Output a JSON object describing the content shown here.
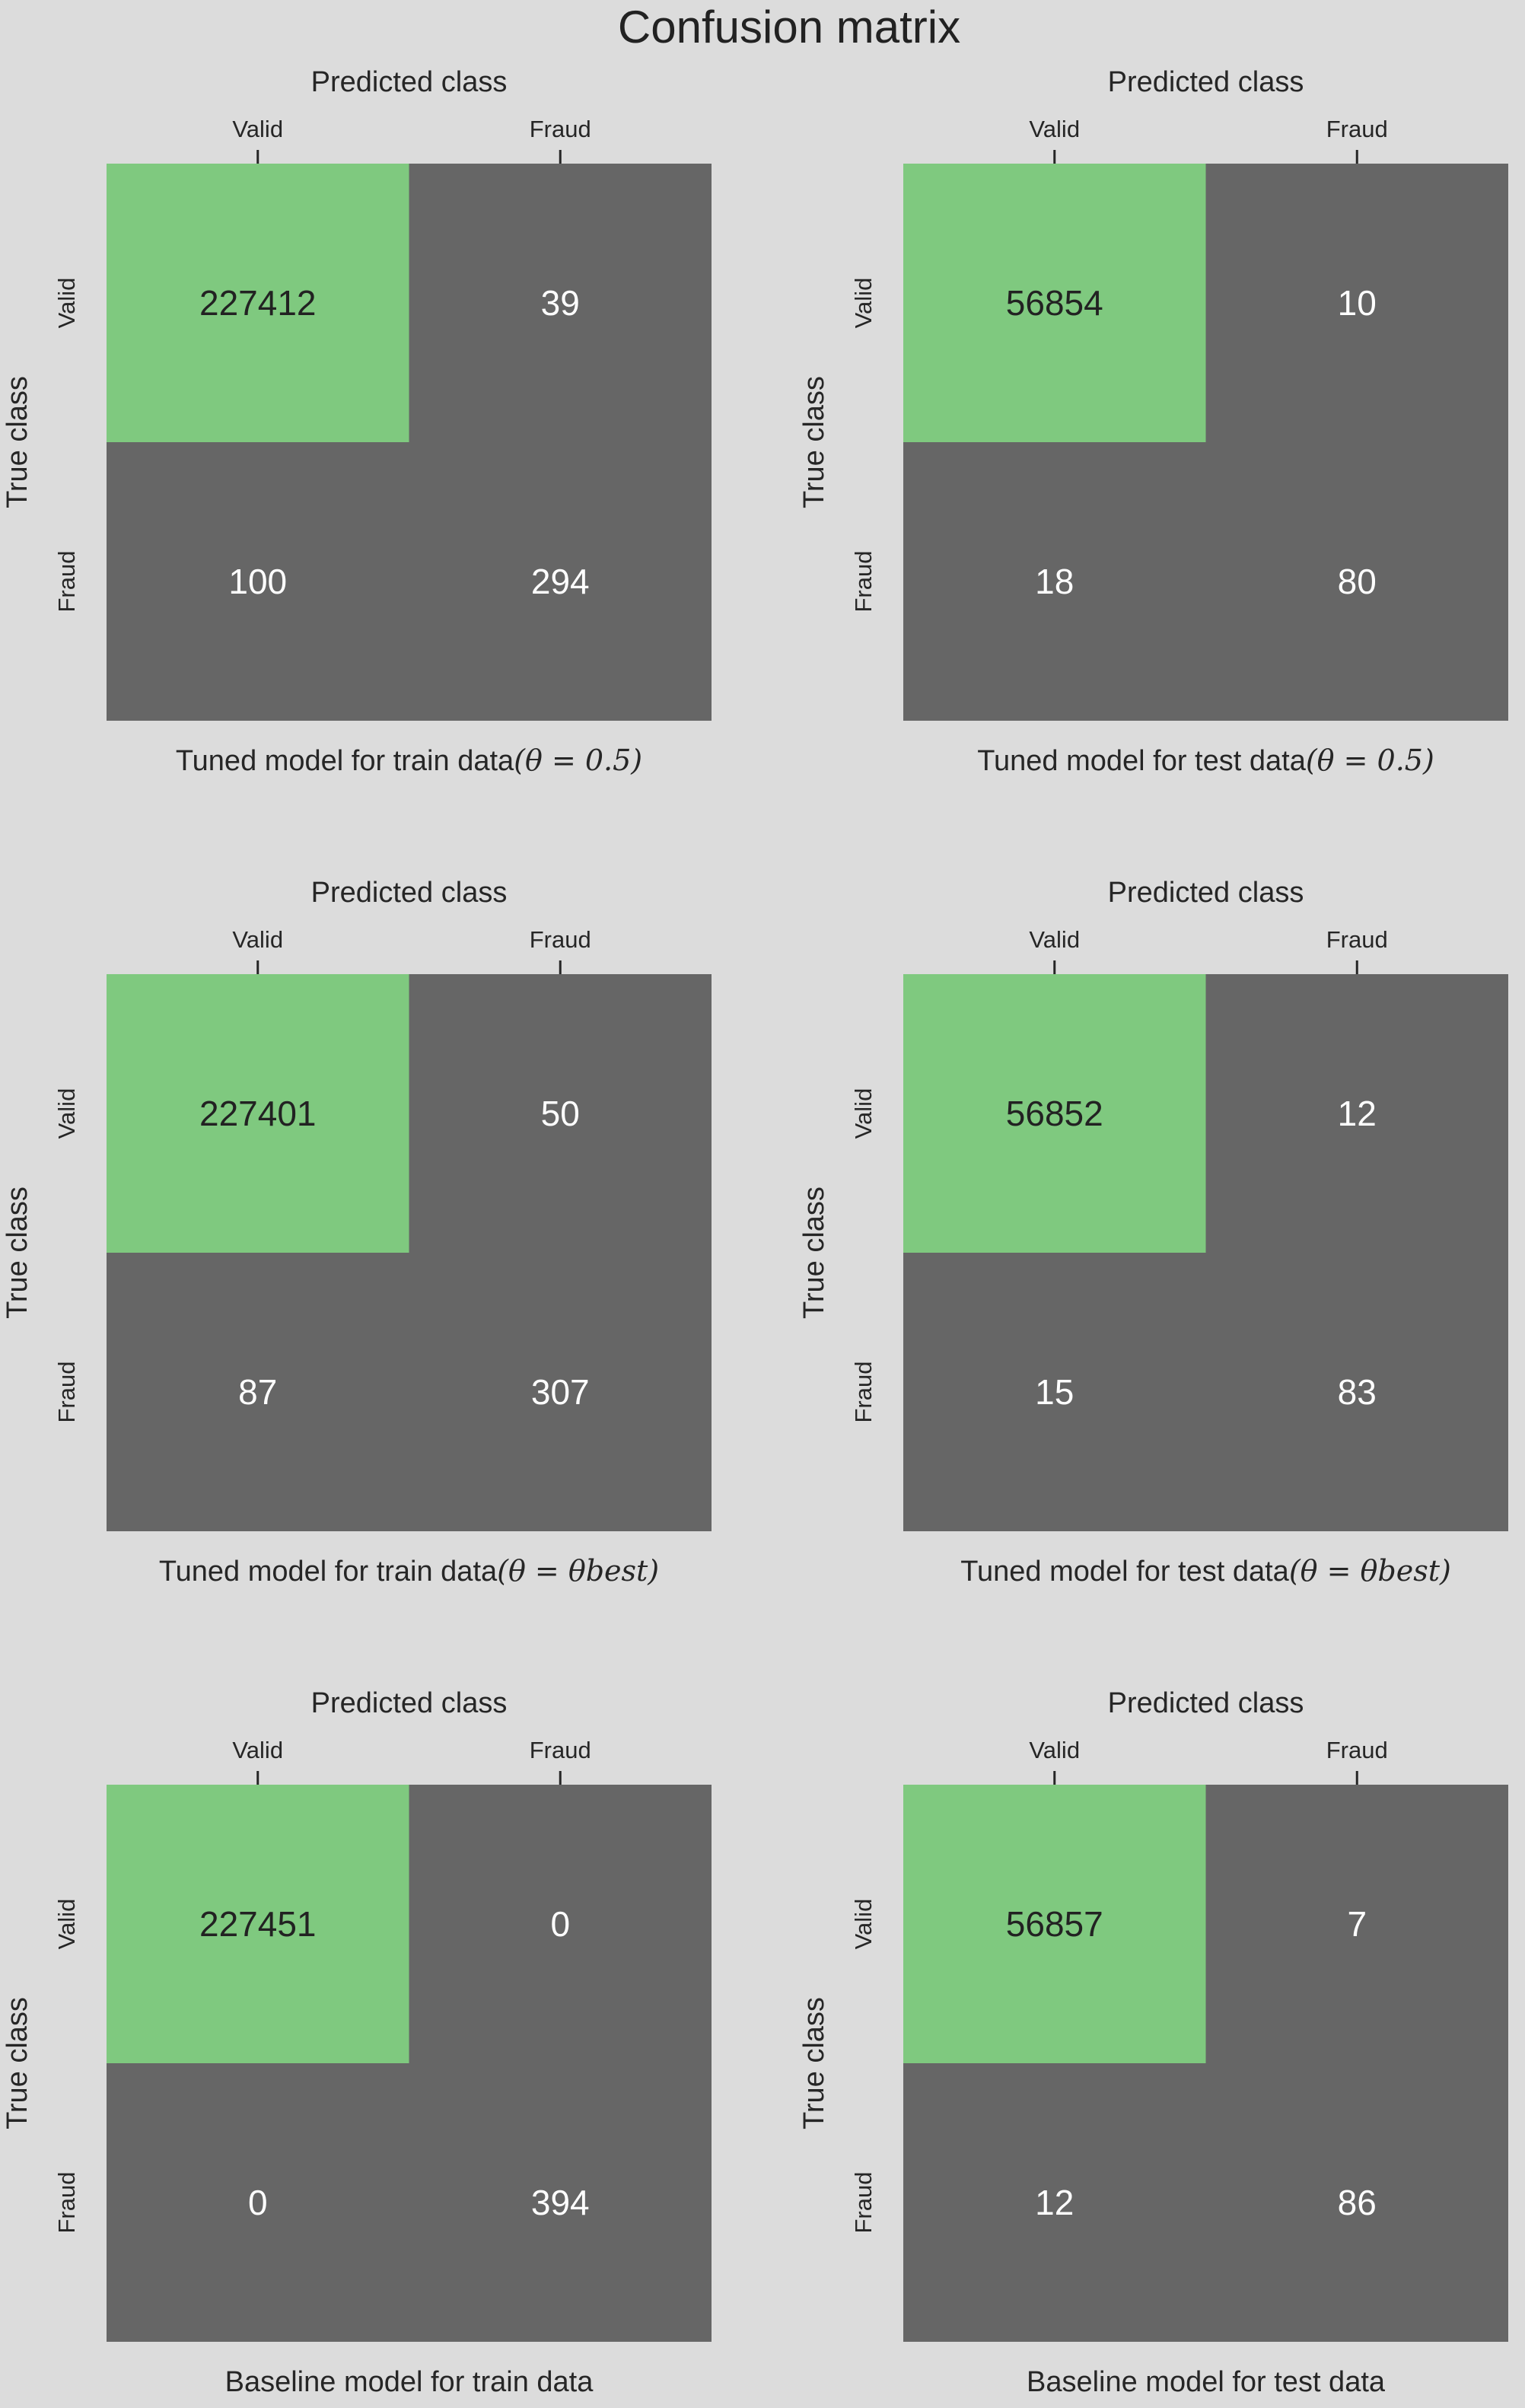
{
  "figure": {
    "title": "Confusion matrix"
  },
  "colors": {
    "background": "#dcdcdc",
    "high_cell": "#7fc97f",
    "low_cell": "#666666",
    "text_on_high": "#222222",
    "text_on_low": "#ffffff"
  },
  "chart_data": [
    {
      "type": "heatmap",
      "title": "",
      "xlabel": "Predicted class",
      "ylabel": "True class",
      "x_categories": [
        "Valid",
        "Fraud"
      ],
      "y_categories": [
        "Valid",
        "Fraud"
      ],
      "matrix": [
        [
          227412,
          39
        ],
        [
          100,
          294
        ]
      ],
      "caption": {
        "text": "Tuned model for train data",
        "math": "(θ = 0.5)"
      }
    },
    {
      "type": "heatmap",
      "title": "",
      "xlabel": "Predicted class",
      "ylabel": "True class",
      "x_categories": [
        "Valid",
        "Fraud"
      ],
      "y_categories": [
        "Valid",
        "Fraud"
      ],
      "matrix": [
        [
          56854,
          10
        ],
        [
          18,
          80
        ]
      ],
      "caption": {
        "text": "Tuned model for test data",
        "math": "(θ = 0.5)"
      }
    },
    {
      "type": "heatmap",
      "title": "",
      "xlabel": "Predicted class",
      "ylabel": "True class",
      "x_categories": [
        "Valid",
        "Fraud"
      ],
      "y_categories": [
        "Valid",
        "Fraud"
      ],
      "matrix": [
        [
          227401,
          50
        ],
        [
          87,
          307
        ]
      ],
      "caption": {
        "text": "Tuned model for train data",
        "math": "(θ = θbest)"
      }
    },
    {
      "type": "heatmap",
      "title": "",
      "xlabel": "Predicted class",
      "ylabel": "True class",
      "x_categories": [
        "Valid",
        "Fraud"
      ],
      "y_categories": [
        "Valid",
        "Fraud"
      ],
      "matrix": [
        [
          56852,
          12
        ],
        [
          15,
          83
        ]
      ],
      "caption": {
        "text": "Tuned model for test data",
        "math": "(θ = θbest)"
      }
    },
    {
      "type": "heatmap",
      "title": "",
      "xlabel": "Predicted class",
      "ylabel": "True class",
      "x_categories": [
        "Valid",
        "Fraud"
      ],
      "y_categories": [
        "Valid",
        "Fraud"
      ],
      "matrix": [
        [
          227451,
          0
        ],
        [
          0,
          394
        ]
      ],
      "caption": {
        "text": "Baseline model for train data",
        "math": ""
      }
    },
    {
      "type": "heatmap",
      "title": "",
      "xlabel": "Predicted class",
      "ylabel": "True class",
      "x_categories": [
        "Valid",
        "Fraud"
      ],
      "y_categories": [
        "Valid",
        "Fraud"
      ],
      "matrix": [
        [
          56857,
          7
        ],
        [
          12,
          86
        ]
      ],
      "caption": {
        "text": "Baseline model for test data",
        "math": ""
      }
    }
  ]
}
